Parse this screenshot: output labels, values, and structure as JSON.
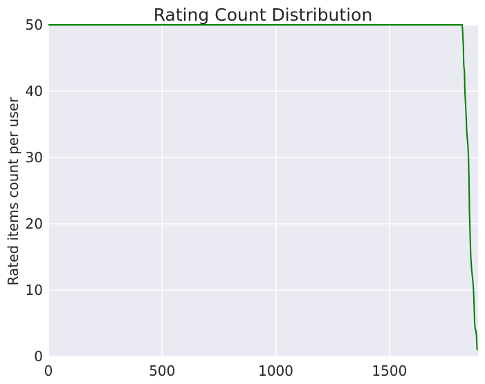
{
  "chart_data": {
    "type": "line",
    "title": "Rating Count Distribution",
    "xlabel": "",
    "ylabel": "Rated items count per user",
    "xlim": [
      0,
      1890
    ],
    "ylim": [
      0,
      50
    ],
    "xticks": [
      0,
      500,
      1000,
      1500
    ],
    "yticks": [
      0,
      10,
      20,
      30,
      40,
      50
    ],
    "grid": true,
    "colors": {
      "plot_background": "#EAEAF2",
      "grid": "#FFFFFF",
      "line": "#008000",
      "text": "#262626"
    },
    "series": [
      {
        "x": [
          0,
          1820,
          1822,
          1825,
          1827,
          1830,
          1832,
          1835,
          1838,
          1840,
          1842,
          1845,
          1848,
          1850,
          1852,
          1855,
          1858,
          1860,
          1862,
          1865,
          1868,
          1870,
          1872,
          1875,
          1878,
          1880,
          1883,
          1886,
          1888
        ],
        "y": [
          50,
          50,
          49,
          47,
          44,
          43,
          40,
          38,
          36,
          34,
          33,
          32,
          30,
          27,
          22,
          18,
          15,
          14,
          13,
          12,
          11,
          10,
          8,
          5,
          4,
          4,
          3,
          1,
          1
        ]
      }
    ]
  }
}
